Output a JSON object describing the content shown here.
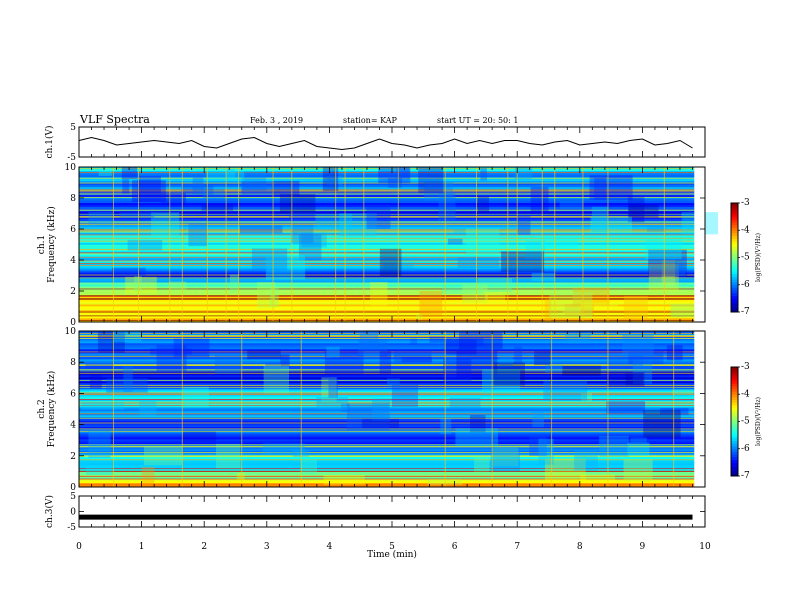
{
  "header": {
    "title": "VLF Spectra",
    "date": "Feb. 3 , 2019",
    "station": "station= KAP",
    "start": "start UT = 20: 50: 1"
  },
  "chart_data": [
    {
      "type": "line",
      "panel": "ch1-waveform",
      "ylabel": "ch.1(V)",
      "ylim": [
        -5,
        5
      ],
      "yticks": [
        "5",
        "-5"
      ],
      "xlim": [
        0,
        10
      ],
      "x": [
        0,
        0.2,
        0.4,
        0.6,
        0.8,
        1.0,
        1.2,
        1.4,
        1.6,
        1.8,
        2.0,
        2.2,
        2.4,
        2.6,
        2.8,
        3.0,
        3.2,
        3.4,
        3.6,
        3.8,
        4.0,
        4.2,
        4.4,
        4.6,
        4.8,
        5.0,
        5.2,
        5.4,
        5.6,
        5.8,
        6.0,
        6.2,
        6.4,
        6.6,
        6.8,
        7.0,
        7.2,
        7.4,
        7.6,
        7.8,
        8.0,
        8.2,
        8.4,
        8.6,
        8.8,
        9.0,
        9.2,
        9.4,
        9.6,
        9.8
      ],
      "values": [
        0.5,
        1.5,
        0.5,
        -1.0,
        -0.5,
        0.0,
        0.5,
        0.0,
        -0.5,
        0.5,
        -1.5,
        -2.0,
        -0.5,
        1.0,
        1.5,
        -0.5,
        -1.5,
        -0.5,
        0.5,
        -1.5,
        -2.0,
        -2.5,
        -2.0,
        -0.5,
        1.0,
        -0.5,
        -1.0,
        -2.0,
        -1.0,
        -0.5,
        1.0,
        -0.5,
        0.5,
        -0.5,
        0.5,
        0.5,
        -0.5,
        -1.0,
        0.0,
        0.5,
        -1.0,
        -0.5,
        0.0,
        -0.5,
        0.5,
        1.0,
        -1.0,
        -0.5,
        0.5,
        -2.0
      ]
    },
    {
      "type": "heatmap",
      "panel": "ch1-spectrogram",
      "ylabel": "ch.1",
      "ylabel2": "Frequency (kHz)",
      "ylim": [
        0,
        10
      ],
      "yticks": [
        "0",
        "2",
        "4",
        "6",
        "8",
        "10"
      ],
      "xlim": [
        0,
        10
      ],
      "colorbar": {
        "label": "log(PSD)(V²/Hz)",
        "range": [
          -7,
          -3
        ],
        "ticks": [
          "-3",
          "-4",
          "-5",
          "-6",
          "-7"
        ]
      },
      "vertical_lines_min": [
        0.55,
        0.95,
        1.45,
        1.65,
        2.05,
        2.35,
        2.55,
        3.1,
        3.4,
        4.1,
        4.25,
        4.55,
        5.1,
        5.85,
        6.35,
        6.85,
        7.0,
        7.4,
        7.6,
        8.05,
        8.45,
        9.35
      ],
      "band_profile_kHz": [
        [
          0,
          -4.5
        ],
        [
          0.5,
          -4.3
        ],
        [
          1,
          -4.4
        ],
        [
          1.5,
          -4.6
        ],
        [
          2,
          -4.8
        ],
        [
          2.5,
          -5.3
        ],
        [
          3,
          -6.6
        ],
        [
          3.5,
          -5.8
        ],
        [
          4,
          -5.6
        ],
        [
          4.5,
          -5.3
        ],
        [
          5,
          -5.6
        ],
        [
          5.5,
          -5.5
        ],
        [
          6,
          -5.9
        ],
        [
          6.5,
          -6.0
        ],
        [
          7,
          -6.5
        ],
        [
          7.5,
          -6.3
        ],
        [
          8,
          -6.2
        ],
        [
          8.5,
          -6.0
        ],
        [
          9,
          -5.9
        ],
        [
          9.5,
          -5.8
        ],
        [
          10,
          -5.6
        ]
      ]
    },
    {
      "type": "heatmap",
      "panel": "ch2-spectrogram",
      "ylabel": "ch.2",
      "ylabel2": "Frequency (kHz)",
      "ylim": [
        0,
        10
      ],
      "yticks": [
        "0",
        "2",
        "4",
        "6",
        "8",
        "10"
      ],
      "xlim": [
        0,
        10
      ],
      "colorbar": {
        "label": "log(PSD)(V²/Hz)",
        "range": [
          -7,
          -3
        ],
        "ticks": [
          "-3",
          "-4",
          "-5",
          "-6",
          "-7"
        ]
      },
      "vertical_lines_min": [
        0.55,
        1.65,
        2.6,
        3.55,
        5.85,
        6.6,
        7.55,
        8.45,
        9.5
      ],
      "band_profile_kHz": [
        [
          0,
          -3.8
        ],
        [
          0.5,
          -5.0
        ],
        [
          1,
          -5.3
        ],
        [
          1.5,
          -5.5
        ],
        [
          2,
          -5.8
        ],
        [
          2.5,
          -5.9
        ],
        [
          3,
          -6.5
        ],
        [
          3.5,
          -6.1
        ],
        [
          4,
          -6.3
        ],
        [
          4.5,
          -6.0
        ],
        [
          5,
          -5.7
        ],
        [
          5.5,
          -5.4
        ],
        [
          6,
          -5.6
        ],
        [
          6.5,
          -6.2
        ],
        [
          7,
          -6.5
        ],
        [
          7.5,
          -6.3
        ],
        [
          8,
          -6.1
        ],
        [
          8.5,
          -6.2
        ],
        [
          9,
          -6.2
        ],
        [
          9.5,
          -6.1
        ],
        [
          10,
          -6.0
        ]
      ]
    },
    {
      "type": "line",
      "panel": "ch3-waveform",
      "ylabel": "ch.3(V)",
      "ylim": [
        -5,
        5
      ],
      "yticks": [
        "5",
        "0",
        "-5"
      ],
      "xlim": [
        0,
        10
      ],
      "xlabel": "Time (min)",
      "xticks": [
        "0",
        "1",
        "2",
        "3",
        "4",
        "5",
        "6",
        "7",
        "8",
        "9",
        "10"
      ],
      "x": [
        0,
        9.8
      ],
      "values": [
        -1.8,
        -1.8
      ]
    }
  ]
}
